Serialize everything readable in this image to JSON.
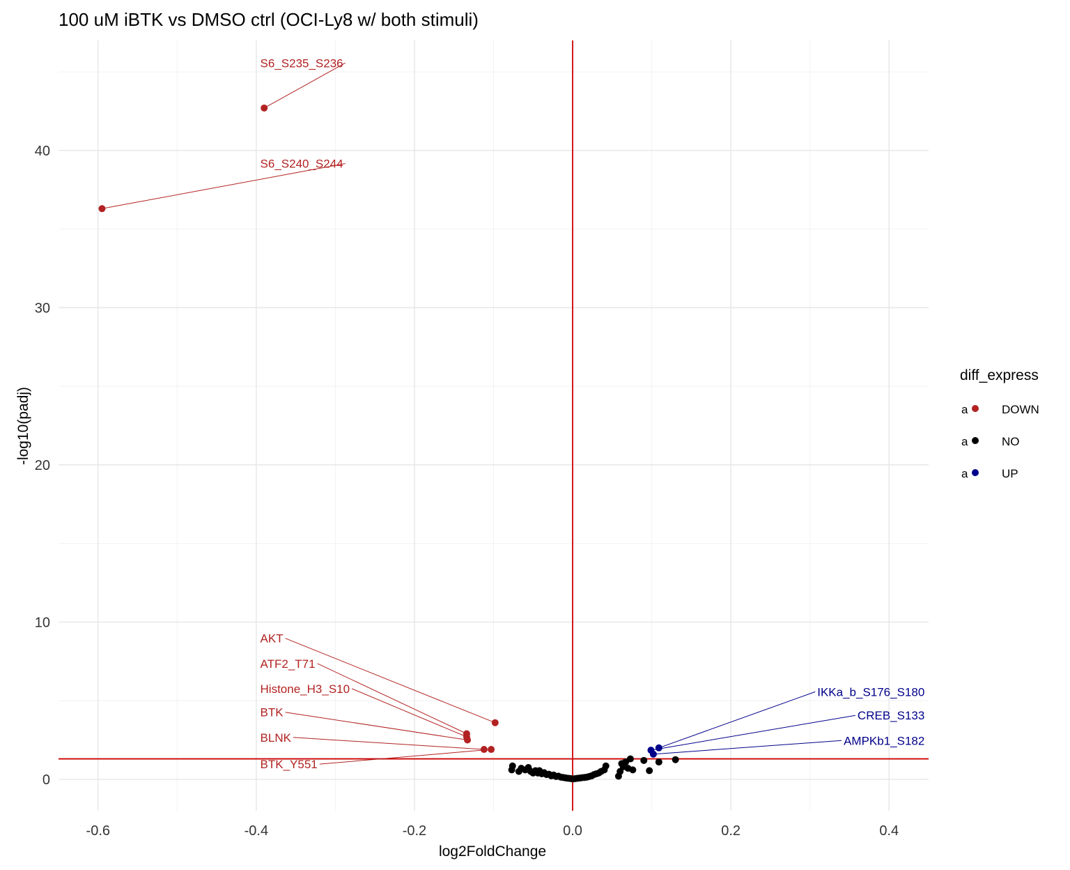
{
  "chart_data": {
    "type": "scatter",
    "title": "100 uM iBTK vs DMSO ctrl (OCI-Ly8 w/ both stimuli)",
    "xlabel": "log2FoldChange",
    "ylabel": "-log10(padj)",
    "xlim": [
      -0.65,
      0.45
    ],
    "ylim": [
      -2,
      47
    ],
    "x_ticks": [
      -0.6,
      -0.4,
      -0.2,
      0.0,
      0.2,
      0.4
    ],
    "x_tick_labels": [
      "-0.6",
      "-0.4",
      "-0.2",
      "0.0",
      "0.2",
      "0.4"
    ],
    "y_ticks": [
      0,
      10,
      20,
      30,
      40
    ],
    "y_tick_labels": [
      "0",
      "10",
      "20",
      "30",
      "40"
    ],
    "grid": true,
    "reference_lines": {
      "vertical_x": 0.0,
      "horizontal_y": 1.3,
      "color": "#cc0000"
    },
    "colors": {
      "DOWN": "#b22222",
      "NO": "#000000",
      "UP": "#00008b"
    },
    "legend": {
      "title": "diff_express",
      "position": "right",
      "key_glyph": "a",
      "entries": [
        {
          "name": "DOWN",
          "color": "#b22222"
        },
        {
          "name": "NO",
          "color": "#000000"
        },
        {
          "name": "UP",
          "color": "#00008b"
        }
      ]
    },
    "points": [
      {
        "x": -0.39,
        "y": 42.7,
        "group": "DOWN",
        "label": "S6_S235_S236",
        "label_x": -0.395,
        "label_y": 45.3
      },
      {
        "x": -0.595,
        "y": 36.3,
        "group": "DOWN",
        "label": "S6_S240_S244",
        "label_x": -0.395,
        "label_y": 38.9
      },
      {
        "x": -0.098,
        "y": 3.6,
        "group": "DOWN",
        "label": "AKT",
        "label_x": -0.395,
        "label_y": 8.7
      },
      {
        "x": -0.134,
        "y": 2.9,
        "group": "DOWN",
        "label": "ATF2_T71",
        "label_x": -0.395,
        "label_y": 7.1
      },
      {
        "x": -0.134,
        "y": 2.7,
        "group": "DOWN",
        "label": "Histone_H3_S10",
        "label_x": -0.395,
        "label_y": 5.5
      },
      {
        "x": -0.133,
        "y": 2.5,
        "group": "DOWN",
        "label": "BTK",
        "label_x": -0.395,
        "label_y": 4.0
      },
      {
        "x": -0.112,
        "y": 1.9,
        "group": "DOWN",
        "label": "BLNK",
        "label_x": -0.395,
        "label_y": 2.4
      },
      {
        "x": -0.103,
        "y": 1.9,
        "group": "DOWN",
        "label": "BTK_Y551",
        "label_x": -0.395,
        "label_y": 0.7
      },
      {
        "x": 0.109,
        "y": 2.0,
        "group": "UP",
        "label": "IKKa_b_S176_S180",
        "label_x": 0.445,
        "label_y": 5.3
      },
      {
        "x": 0.099,
        "y": 1.85,
        "group": "UP",
        "label": "CREB_S133",
        "label_x": 0.445,
        "label_y": 3.8
      },
      {
        "x": 0.102,
        "y": 1.6,
        "group": "UP",
        "label": "AMPKb1_S182",
        "label_x": 0.445,
        "label_y": 2.2
      },
      {
        "x": -0.077,
        "y": 0.6,
        "group": "NO"
      },
      {
        "x": -0.076,
        "y": 0.85,
        "group": "NO"
      },
      {
        "x": -0.068,
        "y": 0.5,
        "group": "NO"
      },
      {
        "x": -0.065,
        "y": 0.7,
        "group": "NO"
      },
      {
        "x": -0.06,
        "y": 0.6,
        "group": "NO"
      },
      {
        "x": -0.056,
        "y": 0.75,
        "group": "NO"
      },
      {
        "x": -0.053,
        "y": 0.5,
        "group": "NO"
      },
      {
        "x": -0.05,
        "y": 0.4,
        "group": "NO"
      },
      {
        "x": -0.047,
        "y": 0.55,
        "group": "NO"
      },
      {
        "x": -0.044,
        "y": 0.4,
        "group": "NO"
      },
      {
        "x": -0.042,
        "y": 0.55,
        "group": "NO"
      },
      {
        "x": -0.039,
        "y": 0.35,
        "group": "NO"
      },
      {
        "x": -0.036,
        "y": 0.42,
        "group": "NO"
      },
      {
        "x": -0.033,
        "y": 0.3,
        "group": "NO"
      },
      {
        "x": -0.03,
        "y": 0.32,
        "group": "NO"
      },
      {
        "x": -0.027,
        "y": 0.22,
        "group": "NO"
      },
      {
        "x": -0.024,
        "y": 0.27,
        "group": "NO"
      },
      {
        "x": -0.021,
        "y": 0.18,
        "group": "NO"
      },
      {
        "x": -0.018,
        "y": 0.2,
        "group": "NO"
      },
      {
        "x": -0.015,
        "y": 0.14,
        "group": "NO"
      },
      {
        "x": -0.012,
        "y": 0.12,
        "group": "NO"
      },
      {
        "x": -0.009,
        "y": 0.09,
        "group": "NO"
      },
      {
        "x": -0.006,
        "y": 0.07,
        "group": "NO"
      },
      {
        "x": -0.003,
        "y": 0.05,
        "group": "NO"
      },
      {
        "x": 0.0,
        "y": 0.03,
        "group": "NO"
      },
      {
        "x": 0.003,
        "y": 0.04,
        "group": "NO"
      },
      {
        "x": 0.006,
        "y": 0.06,
        "group": "NO"
      },
      {
        "x": 0.009,
        "y": 0.08,
        "group": "NO"
      },
      {
        "x": 0.012,
        "y": 0.1,
        "group": "NO"
      },
      {
        "x": 0.015,
        "y": 0.12,
        "group": "NO"
      },
      {
        "x": 0.018,
        "y": 0.14,
        "group": "NO"
      },
      {
        "x": 0.021,
        "y": 0.18,
        "group": "NO"
      },
      {
        "x": 0.024,
        "y": 0.22,
        "group": "NO"
      },
      {
        "x": 0.027,
        "y": 0.3,
        "group": "NO"
      },
      {
        "x": 0.03,
        "y": 0.35,
        "group": "NO"
      },
      {
        "x": 0.033,
        "y": 0.4,
        "group": "NO"
      },
      {
        "x": 0.036,
        "y": 0.5,
        "group": "NO"
      },
      {
        "x": 0.04,
        "y": 0.6,
        "group": "NO"
      },
      {
        "x": 0.042,
        "y": 0.85,
        "group": "NO"
      },
      {
        "x": 0.058,
        "y": 0.2,
        "group": "NO"
      },
      {
        "x": 0.06,
        "y": 0.5,
        "group": "NO"
      },
      {
        "x": 0.062,
        "y": 1.0,
        "group": "NO"
      },
      {
        "x": 0.064,
        "y": 0.8,
        "group": "NO"
      },
      {
        "x": 0.067,
        "y": 1.1,
        "group": "NO"
      },
      {
        "x": 0.07,
        "y": 0.7,
        "group": "NO"
      },
      {
        "x": 0.073,
        "y": 1.3,
        "group": "NO"
      },
      {
        "x": 0.076,
        "y": 0.6,
        "group": "NO"
      },
      {
        "x": 0.09,
        "y": 1.2,
        "group": "NO"
      },
      {
        "x": 0.097,
        "y": 0.55,
        "group": "NO"
      },
      {
        "x": 0.109,
        "y": 1.1,
        "group": "NO"
      },
      {
        "x": 0.13,
        "y": 1.25,
        "group": "NO"
      }
    ]
  }
}
